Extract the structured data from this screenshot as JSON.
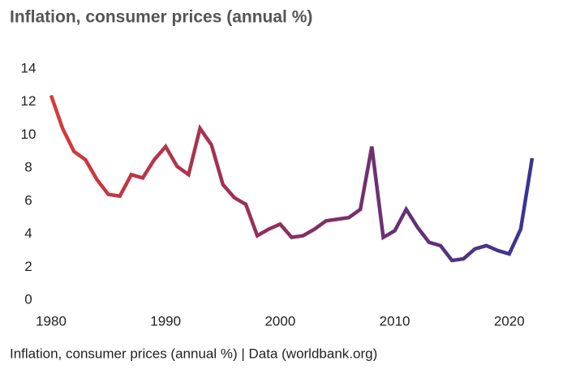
{
  "chart_data": {
    "type": "line",
    "title": "Inflation, consumer prices (annual %)",
    "caption": "Inflation, consumer prices (annual %)  |  Data (worldbank.org)",
    "x": [
      1980,
      1981,
      1982,
      1983,
      1984,
      1985,
      1986,
      1987,
      1988,
      1989,
      1990,
      1991,
      1992,
      1993,
      1994,
      1995,
      1996,
      1997,
      1998,
      1999,
      2000,
      2001,
      2002,
      2003,
      2004,
      2005,
      2006,
      2007,
      2008,
      2009,
      2010,
      2011,
      2012,
      2013,
      2014,
      2015,
      2016,
      2017,
      2018,
      2019,
      2020,
      2021,
      2022
    ],
    "values": [
      12.4,
      10.4,
      9.0,
      8.5,
      7.3,
      6.4,
      6.3,
      7.6,
      7.4,
      8.5,
      9.3,
      8.1,
      7.6,
      10.4,
      9.4,
      7.0,
      6.2,
      5.8,
      3.9,
      4.3,
      4.6,
      3.8,
      3.9,
      4.3,
      4.8,
      4.9,
      5.0,
      5.5,
      9.3,
      3.8,
      4.2,
      5.5,
      4.4,
      3.5,
      3.3,
      2.4,
      2.5,
      3.1,
      3.3,
      3.0,
      2.8,
      4.3,
      8.6
    ],
    "colors": [
      "#d83a38",
      "#8a2f5e",
      "#3a3592"
    ],
    "xlim": [
      1980,
      2022
    ],
    "xticks": [
      1980,
      1990,
      2000,
      2010,
      2020
    ],
    "ylim": [
      0,
      14
    ],
    "yticks": [
      0,
      2,
      4,
      6,
      8,
      10,
      12,
      14
    ],
    "grid": false
  }
}
